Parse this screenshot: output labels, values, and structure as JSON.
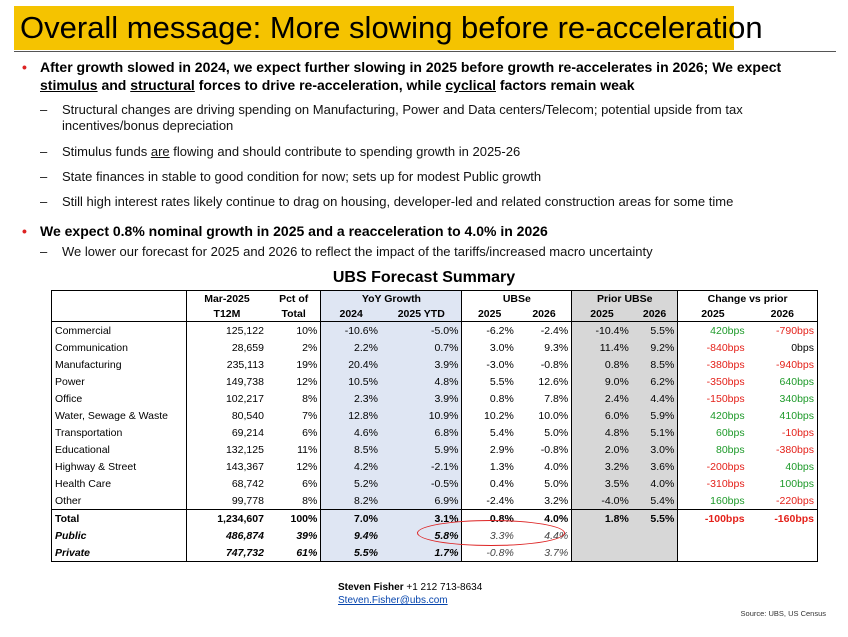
{
  "title": "Overall message: More slowing before re-acceleration",
  "bullets": {
    "main1": {
      "part1": "After growth slowed in 2024, we expect further slowing in 2025 before growth re-accelerates in 2026; We expect ",
      "w_stimulus": "stimulus",
      "part2": " and ",
      "w_structural": "structural",
      "part3": " forces to drive re-acceleration, while ",
      "w_cyclical": "cyclical",
      "part4": " factors remain weak"
    },
    "sub1": "Structural changes are driving spending on Manufacturing, Power and Data centers/Telecom; potential upside from tax incentives/bonus depreciation",
    "sub2_a": "Stimulus funds ",
    "sub2_are": "are",
    "sub2_b": " flowing and should contribute to spending growth in 2025-26",
    "sub3": "State finances in stable to good condition for now; sets up for modest Public growth",
    "sub4": "Still high interest rates likely continue to drag on housing, developer-led and related construction areas for some time",
    "main2": "We expect 0.8% nominal growth in 2025 and a reacceleration to 4.0% in 2026",
    "sub5": "We lower our forecast for 2025 and 2026 to reflect the impact of the tariffs/increased macro uncertainty"
  },
  "table": {
    "title": "UBS Forecast Summary",
    "head1": [
      "Mar-2025",
      "Pct of",
      "YoY Growth",
      "UBSe",
      "Prior UBSe",
      "Change vs prior"
    ],
    "head2": [
      "T12M",
      "Total",
      "2024",
      "2025 YTD",
      "2025",
      "2026",
      "2025",
      "2026",
      "2025",
      "2026"
    ],
    "rows": [
      {
        "name": "Commercial",
        "t12m": "125,122",
        "pct": "10%",
        "y24": "-10.6%",
        "ytd": "-5.0%",
        "u25": "-6.2%",
        "u26": "-2.4%",
        "p25": "-10.4%",
        "p26": "5.5%",
        "c25": "420bps",
        "c26": "-790bps",
        "c25c": "g",
        "c26c": "r"
      },
      {
        "name": "Communication",
        "t12m": "28,659",
        "pct": "2%",
        "y24": "2.2%",
        "ytd": "0.7%",
        "u25": "3.0%",
        "u26": "9.3%",
        "p25": "11.4%",
        "p26": "9.2%",
        "c25": "-840bps",
        "c26": "0bps",
        "c25c": "r",
        "c26c": "k"
      },
      {
        "name": "Manufacturing",
        "t12m": "235,113",
        "pct": "19%",
        "y24": "20.4%",
        "ytd": "3.9%",
        "u25": "-3.0%",
        "u26": "-0.8%",
        "p25": "0.8%",
        "p26": "8.5%",
        "c25": "-380bps",
        "c26": "-940bps",
        "c25c": "r",
        "c26c": "r"
      },
      {
        "name": "Power",
        "t12m": "149,738",
        "pct": "12%",
        "y24": "10.5%",
        "ytd": "4.8%",
        "u25": "5.5%",
        "u26": "12.6%",
        "p25": "9.0%",
        "p26": "6.2%",
        "c25": "-350bps",
        "c26": "640bps",
        "c25c": "r",
        "c26c": "g"
      },
      {
        "name": "Office",
        "t12m": "102,217",
        "pct": "8%",
        "y24": "2.3%",
        "ytd": "3.9%",
        "u25": "0.8%",
        "u26": "7.8%",
        "p25": "2.4%",
        "p26": "4.4%",
        "c25": "-150bps",
        "c26": "340bps",
        "c25c": "r",
        "c26c": "g"
      },
      {
        "name": "Water, Sewage & Waste",
        "t12m": "80,540",
        "pct": "7%",
        "y24": "12.8%",
        "ytd": "10.9%",
        "u25": "10.2%",
        "u26": "10.0%",
        "p25": "6.0%",
        "p26": "5.9%",
        "c25": "420bps",
        "c26": "410bps",
        "c25c": "g",
        "c26c": "g"
      },
      {
        "name": "Transportation",
        "t12m": "69,214",
        "pct": "6%",
        "y24": "4.6%",
        "ytd": "6.8%",
        "u25": "5.4%",
        "u26": "5.0%",
        "p25": "4.8%",
        "p26": "5.1%",
        "c25": "60bps",
        "c26": "-10bps",
        "c25c": "g",
        "c26c": "r"
      },
      {
        "name": "Educational",
        "t12m": "132,125",
        "pct": "11%",
        "y24": "8.5%",
        "ytd": "5.9%",
        "u25": "2.9%",
        "u26": "-0.8%",
        "p25": "2.0%",
        "p26": "3.0%",
        "c25": "80bps",
        "c26": "-380bps",
        "c25c": "g",
        "c26c": "r"
      },
      {
        "name": "Highway & Street",
        "t12m": "143,367",
        "pct": "12%",
        "y24": "4.2%",
        "ytd": "-2.1%",
        "u25": "1.3%",
        "u26": "4.0%",
        "p25": "3.2%",
        "p26": "3.6%",
        "c25": "-200bps",
        "c26": "40bps",
        "c25c": "r",
        "c26c": "g"
      },
      {
        "name": "Health Care",
        "t12m": "68,742",
        "pct": "6%",
        "y24": "5.2%",
        "ytd": "-0.5%",
        "u25": "0.4%",
        "u26": "5.0%",
        "p25": "3.5%",
        "p26": "4.0%",
        "c25": "-310bps",
        "c26": "100bps",
        "c25c": "r",
        "c26c": "g"
      },
      {
        "name": "Other",
        "t12m": "99,778",
        "pct": "8%",
        "y24": "8.2%",
        "ytd": "6.9%",
        "u25": "-2.4%",
        "u26": "3.2%",
        "p25": "-4.0%",
        "p26": "5.4%",
        "c25": "160bps",
        "c26": "-220bps",
        "c25c": "g",
        "c26c": "r"
      }
    ],
    "total": {
      "name": "Total",
      "t12m": "1,234,607",
      "pct": "100%",
      "y24": "7.0%",
      "ytd": "3.1%",
      "u25": "0.8%",
      "u26": "4.0%",
      "p25": "1.8%",
      "p26": "5.5%",
      "c25": "-100bps",
      "c26": "-160bps"
    },
    "public": {
      "name": "Public",
      "t12m": "486,874",
      "pct": "39%",
      "y24": "9.4%",
      "ytd": "5.8%",
      "u25": "3.3%",
      "u26": "4.4%"
    },
    "private": {
      "name": "Private",
      "t12m": "747,732",
      "pct": "61%",
      "y24": "5.5%",
      "ytd": "1.7%",
      "u25": "-0.8%",
      "u26": "3.7%"
    }
  },
  "contact": {
    "name": "Steven Fisher",
    "phone": " +1 212 713-8634",
    "email": "Steven.Fisher@ubs.com"
  },
  "source": "Source:  UBS, US Census",
  "colors": {
    "title_bg": "#f5c300",
    "positive": "#1e9a2a",
    "negative": "#e4211a",
    "highlight_oval": "#d22222"
  }
}
